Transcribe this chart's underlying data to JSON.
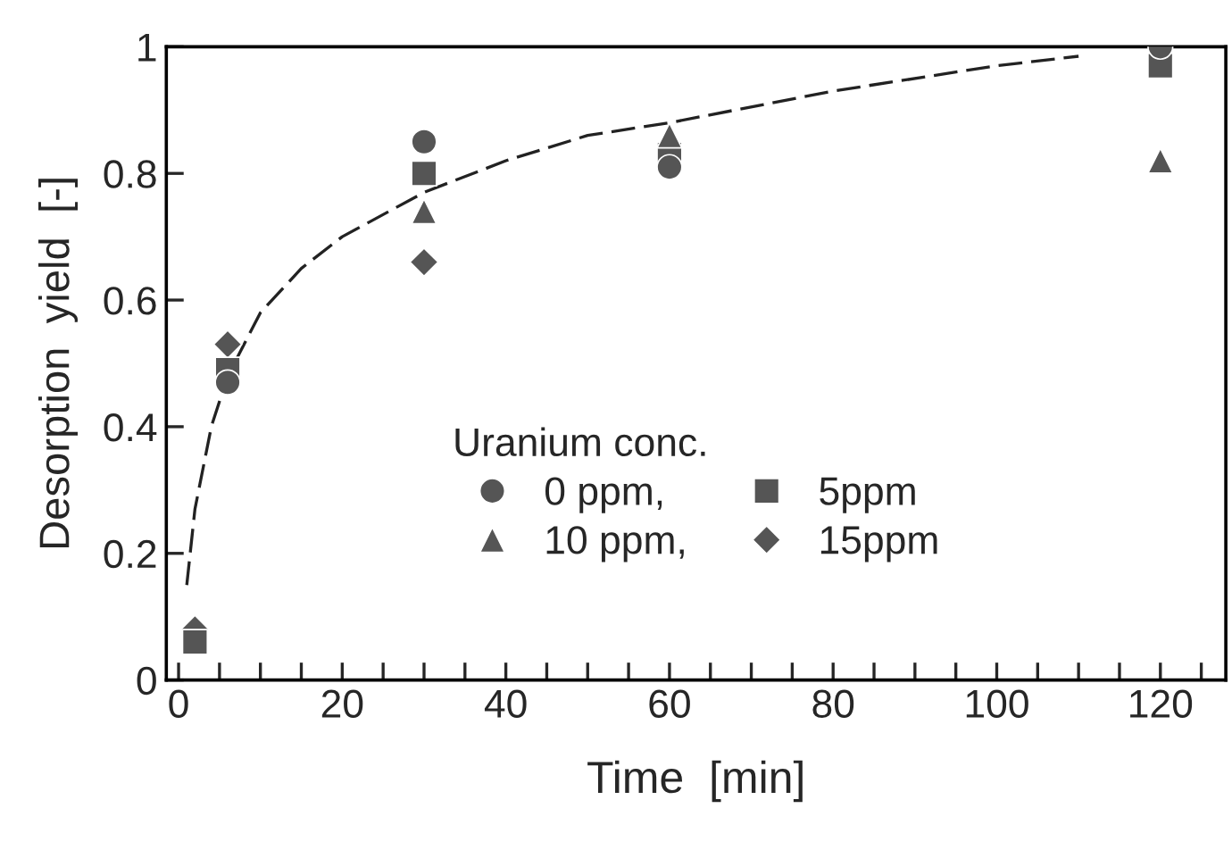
{
  "chart_data": {
    "type": "scatter",
    "xlabel": "Time  [min]",
    "ylabel": "Desorption  yield  [-]",
    "legend_title": "Uranium conc.",
    "legend": "lower center",
    "grid": false,
    "xlim": [
      -1.5,
      128
    ],
    "ylim": [
      0,
      1
    ],
    "xticks": [
      0,
      {
        "value": 5,
        "label": null
      },
      {
        "value": 10,
        "label": null
      },
      {
        "value": 15,
        "label": null
      },
      20,
      {
        "value": 25,
        "label": null
      },
      {
        "value": 30,
        "label": null
      },
      {
        "value": 35,
        "label": null
      },
      40,
      {
        "value": 45,
        "label": null
      },
      {
        "value": 50,
        "label": null
      },
      {
        "value": 55,
        "label": null
      },
      60,
      {
        "value": 65,
        "label": null
      },
      {
        "value": 70,
        "label": null
      },
      {
        "value": 75,
        "label": null
      },
      80,
      {
        "value": 85,
        "label": null
      },
      {
        "value": 90,
        "label": null
      },
      {
        "value": 95,
        "label": null
      },
      100,
      {
        "value": 105,
        "label": null
      },
      {
        "value": 110,
        "label": null
      },
      {
        "value": 115,
        "label": null
      },
      120,
      {
        "value": 125,
        "label": null
      }
    ],
    "yticks": [
      0,
      0.2,
      0.4,
      0.6,
      0.8,
      1
    ],
    "series": [
      {
        "name": "0 ppm,",
        "color": "#555555",
        "marker": "circle",
        "x": [
          6,
          30,
          60,
          120
        ],
        "values": [
          0.47,
          0.85,
          0.81,
          1.0
        ]
      },
      {
        "name": "10 ppm,",
        "color": "#555555",
        "marker": "triangle",
        "x": [
          30,
          60,
          120
        ],
        "values": [
          0.74,
          0.86,
          0.82
        ]
      },
      {
        "name": "5ppm",
        "color": "#555555",
        "marker": "square",
        "x": [
          2,
          6,
          30,
          60,
          120
        ],
        "values": [
          0.06,
          0.49,
          0.8,
          0.83,
          0.97
        ]
      },
      {
        "name": "15ppm",
        "color": "#555555",
        "marker": "diamond",
        "x": [
          2,
          6,
          30
        ],
        "values": [
          0.08,
          0.53,
          0.66
        ]
      },
      {
        "type": "line",
        "color": "#222222",
        "line_style": "dashed",
        "x": [
          1,
          2,
          4,
          6,
          10,
          15,
          20,
          30,
          40,
          50,
          60,
          80,
          100,
          110
        ],
        "values": [
          0.15,
          0.27,
          0.4,
          0.48,
          0.58,
          0.65,
          0.7,
          0.77,
          0.82,
          0.86,
          0.88,
          0.93,
          0.97,
          0.985
        ]
      }
    ]
  }
}
